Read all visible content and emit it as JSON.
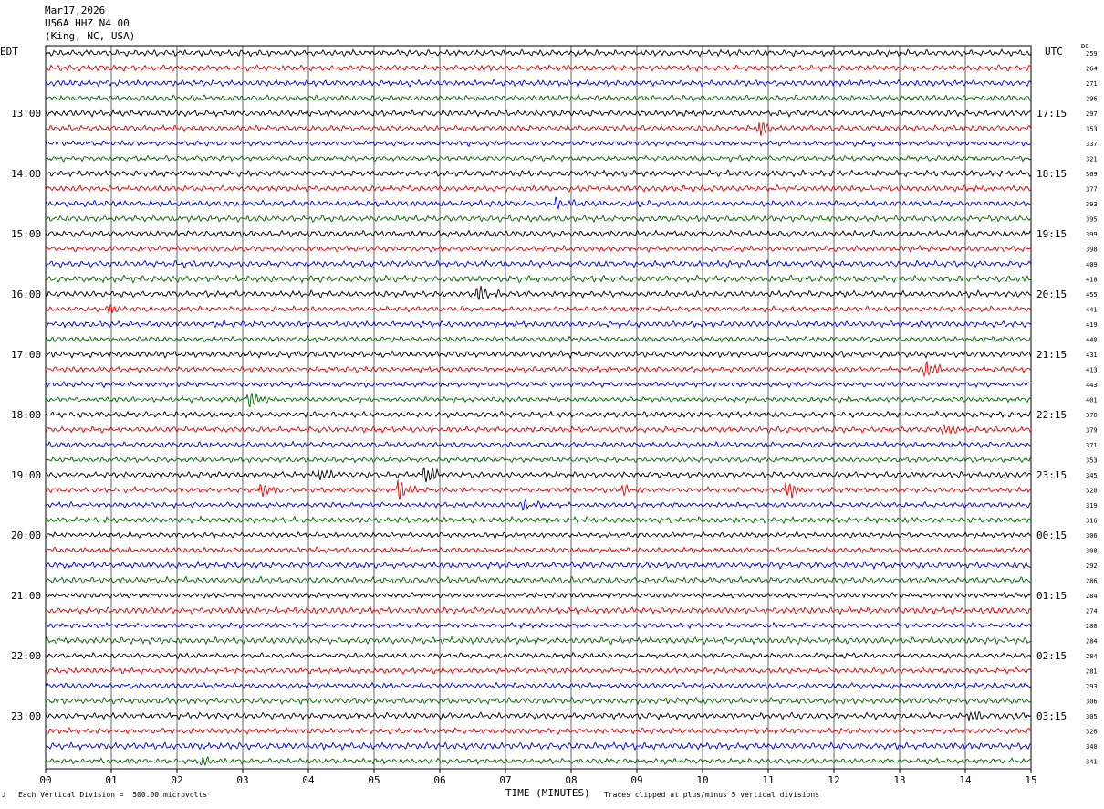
{
  "header": {
    "date": "Mar17,2026",
    "station": "U56A HHZ N4 00",
    "location": "(King, NC, USA)"
  },
  "tz_left": "EDT",
  "tz_right": "UTC",
  "dc_label": "DC",
  "footer": {
    "division": "Each Vertical Division =  500.00 microvolts",
    "xlabel": "TIME (MINUTES)",
    "clip_note": "Traces clipped at plus/minus 5 vertical divisions",
    "corner_mark": "♪"
  },
  "chart_data": {
    "type": "line",
    "title": "Mar17,2026",
    "subtitle": "U56A HHZ N4 00 (King, NC, USA)",
    "xlabel": "TIME (MINUTES)",
    "xlim": [
      0,
      15
    ],
    "x_ticks": [
      "00",
      "01",
      "02",
      "03",
      "04",
      "05",
      "06",
      "07",
      "08",
      "09",
      "10",
      "11",
      "12",
      "13",
      "14",
      "15"
    ],
    "trace_colors": [
      "#000000",
      "#dd0000",
      "#0000dd",
      "#006600"
    ],
    "left_hour_labels": [
      "13:00",
      "14:00",
      "15:00",
      "16:00",
      "17:00",
      "18:00",
      "19:00",
      "20:00",
      "21:00",
      "22:00",
      "23:00"
    ],
    "right_hour_labels": [
      "17:15",
      "18:15",
      "19:15",
      "20:15",
      "21:15",
      "22:15",
      "23:15",
      "00:15",
      "01:15",
      "02:15",
      "03:15"
    ],
    "dc_offsets": [
      259,
      264,
      271,
      296,
      297,
      353,
      337,
      321,
      369,
      377,
      393,
      395,
      399,
      398,
      409,
      418,
      455,
      441,
      419,
      440,
      431,
      413,
      443,
      401,
      370,
      379,
      371,
      353,
      345,
      320,
      319,
      316,
      306,
      300,
      292,
      286,
      284,
      274,
      280,
      284,
      284,
      281,
      293,
      306,
      305,
      326,
      340,
      341
    ],
    "amplitude_scale": "500.00 microvolts per vertical division",
    "events": [
      {
        "trace": 5,
        "minute": 10.9,
        "amp": 9
      },
      {
        "trace": 10,
        "minute": 7.8,
        "amp": 7
      },
      {
        "trace": 16,
        "minute": 6.6,
        "amp": 10
      },
      {
        "trace": 17,
        "minute": 1.0,
        "amp": 6
      },
      {
        "trace": 21,
        "minute": 13.4,
        "amp": 12
      },
      {
        "trace": 23,
        "minute": 3.1,
        "amp": 11
      },
      {
        "trace": 25,
        "minute": 13.7,
        "amp": 8
      },
      {
        "trace": 28,
        "minute": 4.2,
        "amp": 9
      },
      {
        "trace": 28,
        "minute": 5.8,
        "amp": 11
      },
      {
        "trace": 29,
        "minute": 3.3,
        "amp": 8
      },
      {
        "trace": 29,
        "minute": 5.4,
        "amp": 13
      },
      {
        "trace": 29,
        "minute": 8.8,
        "amp": 7
      },
      {
        "trace": 29,
        "minute": 11.3,
        "amp": 11
      },
      {
        "trace": 30,
        "minute": 7.3,
        "amp": 6
      },
      {
        "trace": 44,
        "minute": 14.1,
        "amp": 6
      },
      {
        "trace": 47,
        "minute": 2.4,
        "amp": 6
      }
    ]
  }
}
